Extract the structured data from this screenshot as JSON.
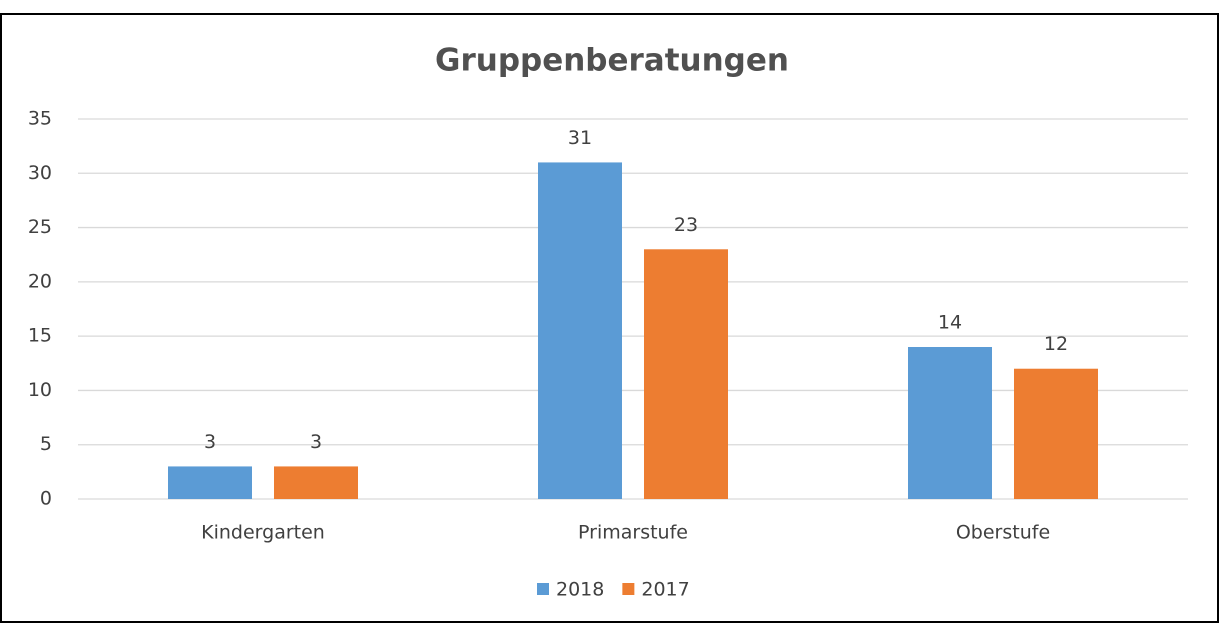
{
  "chart_data": {
    "type": "bar",
    "title": "Gruppenberatungen",
    "categories": [
      "Kindergarten",
      "Primarstufe",
      "Oberstufe"
    ],
    "series": [
      {
        "name": "2018",
        "color": "#5b9bd5",
        "values": [
          3,
          31,
          14
        ]
      },
      {
        "name": "2017",
        "color": "#ed7d31",
        "values": [
          3,
          23,
          12
        ]
      }
    ],
    "ylim": [
      0,
      35
    ],
    "yticks": [
      0,
      5,
      10,
      15,
      20,
      25,
      30,
      35
    ],
    "grid": true,
    "legend": "bottom"
  }
}
